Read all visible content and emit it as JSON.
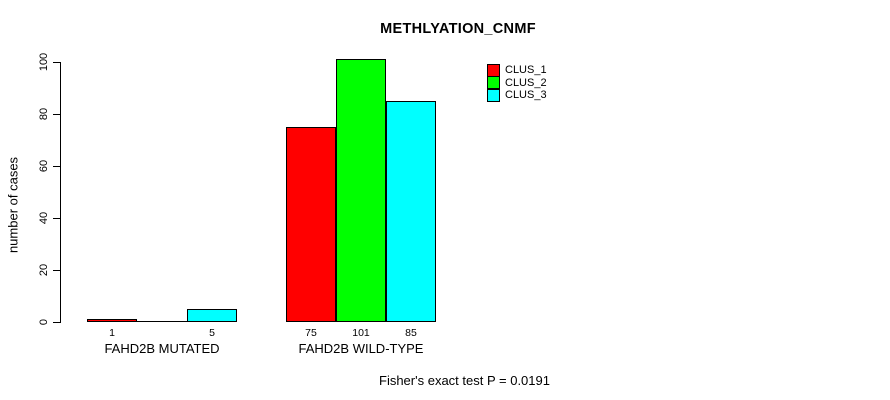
{
  "chart_data": {
    "type": "bar",
    "title": "METHLYATION_CNMF",
    "xlabel": "",
    "ylabel": "number of cases",
    "ylim": [
      0,
      100
    ],
    "yticks": [
      0,
      20,
      40,
      60,
      80,
      100
    ],
    "grid": false,
    "legend_position": "top-right",
    "series_names": [
      "CLUS_1",
      "CLUS_2",
      "CLUS_3"
    ],
    "series_colors": [
      "#FF0000",
      "#00FF00",
      "#00FFFF"
    ],
    "categories": [
      "FAHD2B MUTATED",
      "FAHD2B WILD-TYPE"
    ],
    "groups": [
      {
        "label": "FAHD2B MUTATED",
        "values": [
          1,
          0,
          5
        ],
        "value_labels": [
          "1",
          "",
          "5"
        ]
      },
      {
        "label": "FAHD2B WILD-TYPE",
        "values": [
          75,
          101,
          85
        ],
        "value_labels": [
          "75",
          "101",
          "85"
        ]
      }
    ]
  },
  "legend": {
    "items": [
      {
        "label": "CLUS_1",
        "color": "#FF0000"
      },
      {
        "label": "CLUS_2",
        "color": "#00FF00"
      },
      {
        "label": "CLUS_3",
        "color": "#00FFFF"
      }
    ]
  },
  "footer": {
    "note": "Fisher's exact test P = 0.0191"
  }
}
